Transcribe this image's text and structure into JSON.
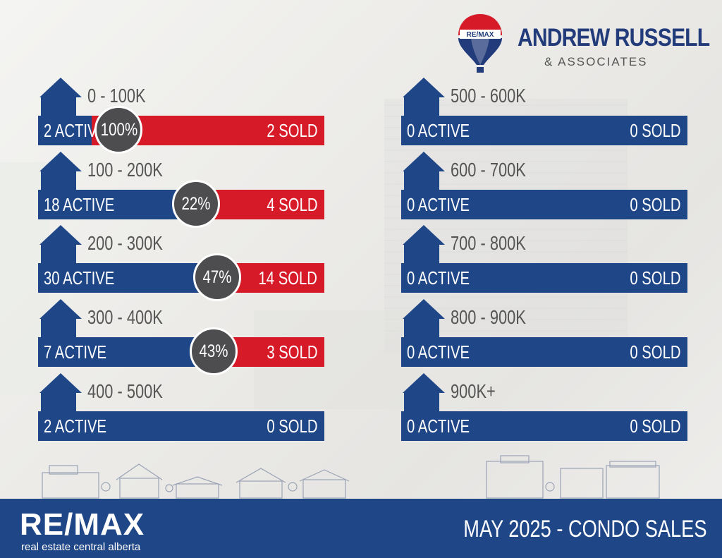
{
  "brand": {
    "balloon_text": "RE/MAX",
    "name": "ANDREW RUSSELL",
    "sub": "& ASSOCIATES"
  },
  "colors": {
    "active": "#1f4788",
    "sold": "#d71a28",
    "badge": "#4d4d4f"
  },
  "ranges": [
    {
      "label": "0 - 100K",
      "active": "2 ACTIVE",
      "sold": "2 SOLD",
      "pct": "100%",
      "ratio": 1.0
    },
    {
      "label": "100 - 200K",
      "active": "18 ACTIVE",
      "sold": "4 SOLD",
      "pct": "22%",
      "ratio": 0.22
    },
    {
      "label": "200 - 300K",
      "active": "30 ACTIVE",
      "sold": "14 SOLD",
      "pct": "47%",
      "ratio": 0.47
    },
    {
      "label": "300 - 400K",
      "active": "7 ACTIVE",
      "sold": "3 SOLD",
      "pct": "43%",
      "ratio": 0.43
    },
    {
      "label": "400 - 500K",
      "active": "2 ACTIVE",
      "sold": "0 SOLD",
      "pct": "",
      "ratio": 0
    },
    {
      "label": "500 - 600K",
      "active": "0 ACTIVE",
      "sold": "0 SOLD",
      "pct": "",
      "ratio": 0
    },
    {
      "label": "600 - 700K",
      "active": "0 ACTIVE",
      "sold": "0 SOLD",
      "pct": "",
      "ratio": 0
    },
    {
      "label": "700 - 800K",
      "active": "0 ACTIVE",
      "sold": "0 SOLD",
      "pct": "",
      "ratio": 0
    },
    {
      "label": "800 - 900K",
      "active": "0 ACTIVE",
      "sold": "0 SOLD",
      "pct": "",
      "ratio": 0
    },
    {
      "label": "900K+",
      "active": "0 ACTIVE",
      "sold": "0 SOLD",
      "pct": "",
      "ratio": 0
    }
  ],
  "footer": {
    "logo": "RE/MAX",
    "tagline": "real estate central alberta",
    "title": "MAY 2025 -  CONDO SALES"
  }
}
